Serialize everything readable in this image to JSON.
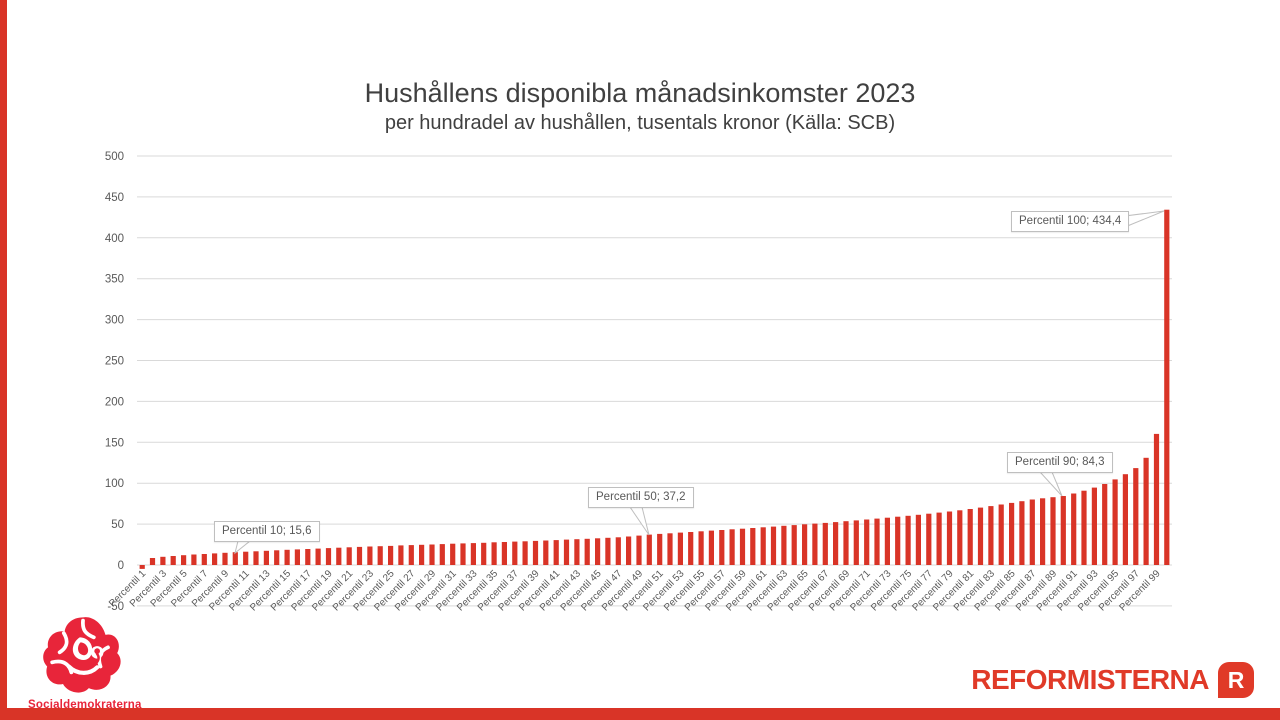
{
  "chart_data": {
    "type": "bar",
    "title": "Hushållens disponibla månadsinkomster 2023",
    "subtitle": "per hundradel av hushållen, tusentals kronor (Källa: SCB)",
    "xlabel": "",
    "ylabel": "",
    "ylim": [
      -50,
      500
    ],
    "grid": "horizontal",
    "legend": "none",
    "bar_color": "#d93427",
    "gridline_color": "#d9d9d9",
    "axis_text_color": "#595959",
    "yticks": [
      500,
      450,
      400,
      350,
      300,
      250,
      200,
      150,
      100,
      50,
      0,
      -50
    ],
    "xtick_labels": [
      "Percentil 1",
      "Percentil 3",
      "Percentil 5",
      "Percentil 7",
      "Percentil 9",
      "Percentil 11",
      "Percentil 13",
      "Percentil 15",
      "Percentil 17",
      "Percentil 19",
      "Percentil 21",
      "Percentil 23",
      "Percentil 25",
      "Percentil 27",
      "Percentil 29",
      "Percentil 31",
      "Percentil 33",
      "Percentil 35",
      "Percentil 37",
      "Percentil 39",
      "Percentil 41",
      "Percentil 43",
      "Percentil 45",
      "Percentil 47",
      "Percentil 49",
      "Percentil 51",
      "Percentil 53",
      "Percentil 55",
      "Percentil 57",
      "Percentil 59",
      "Percentil 61",
      "Percentil 63",
      "Percentil 65",
      "Percentil 67",
      "Percentil 69",
      "Percentil 71",
      "Percentil 73",
      "Percentil 75",
      "Percentil 77",
      "Percentil 79",
      "Percentil 81",
      "Percentil 83",
      "Percentil 85",
      "Percentil 87",
      "Percentil 89",
      "Percentil 91",
      "Percentil 93",
      "Percentil 95",
      "Percentil 97",
      "Percentil 99"
    ],
    "values": [
      -4.8,
      8.5,
      10.0,
      11.0,
      12.0,
      12.8,
      13.5,
      14.2,
      14.9,
      15.6,
      16.2,
      16.8,
      17.4,
      18.0,
      18.6,
      19.1,
      19.6,
      20.1,
      20.6,
      21.1,
      21.6,
      22.1,
      22.6,
      23.0,
      23.4,
      23.9,
      24.3,
      24.7,
      25.1,
      25.5,
      26.0,
      26.4,
      26.8,
      27.2,
      27.7,
      28.1,
      28.6,
      29.0,
      29.5,
      30.0,
      30.5,
      31.0,
      31.5,
      32.0,
      32.6,
      33.2,
      33.9,
      34.9,
      36.0,
      37.2,
      38.0,
      38.8,
      39.6,
      40.4,
      41.2,
      42.0,
      42.8,
      43.6,
      44.4,
      45.2,
      46.1,
      47.0,
      47.9,
      48.8,
      49.7,
      50.6,
      51.5,
      52.5,
      53.5,
      54.5,
      55.6,
      56.7,
      57.8,
      59.0,
      60.2,
      61.4,
      62.7,
      64.0,
      65.4,
      66.9,
      68.5,
      70.2,
      72.0,
      73.9,
      75.9,
      78.0,
      80.1,
      81.5,
      82.9,
      84.3,
      87.4,
      90.8,
      94.6,
      99.0,
      104.6,
      111.0,
      118.5,
      131.0,
      160.3,
      434.4
    ],
    "callouts": [
      {
        "percentile": 10,
        "label": "Percentil 10; 15,6",
        "value": 15.6
      },
      {
        "percentile": 50,
        "label": "Percentil 50; 37,2",
        "value": 37.2
      },
      {
        "percentile": 90,
        "label": "Percentil 90; 84,3",
        "value": 84.3
      },
      {
        "percentile": 100,
        "label": "Percentil 100; 434,4",
        "value": 434.4
      }
    ]
  },
  "footer": {
    "social_label": "Socialdemokraterna",
    "reformisterna_label": "REFORMISTERNA",
    "badge_letter": "R",
    "brand_red": "#e03a28",
    "rose_red": "#e8253a"
  }
}
